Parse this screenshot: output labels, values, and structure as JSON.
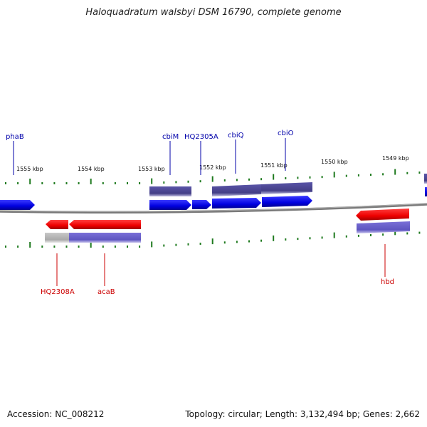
{
  "title": "Haloquadratum walsbyi DSM 16790, complete genome",
  "footer": {
    "accession": "Accession: NC_008212",
    "stats": "Topology: circular; Length: 3,132,494 bp; Genes: 2,662"
  },
  "colors": {
    "cds": "#0000ee",
    "gene_forward": "#4b4690",
    "rna": "#ee0000",
    "gene_reverse": "#6a60c8",
    "gene_partial": "#b8b8b8",
    "tick": "#1f7a1f",
    "backbone": "#808080",
    "label_forward": "#0000aa",
    "label_reverse": "#cc0000"
  },
  "ruler": [
    {
      "label": "1555 kbp"
    },
    {
      "label": "1554 kbp"
    },
    {
      "label": "1553 kbp"
    },
    {
      "label": "1552 kbp"
    },
    {
      "label": "1551 kbp"
    },
    {
      "label": "1550 kbp"
    },
    {
      "label": "1549 kbp"
    }
  ],
  "forward_labels": [
    {
      "name": "phaB"
    },
    {
      "name": "cbiM"
    },
    {
      "name": "HQ2305A"
    },
    {
      "name": "cbiQ"
    },
    {
      "name": "cbiO"
    }
  ],
  "reverse_labels": [
    {
      "name": "HQ2308A"
    },
    {
      "name": "acaB"
    },
    {
      "name": "hbd"
    }
  ]
}
